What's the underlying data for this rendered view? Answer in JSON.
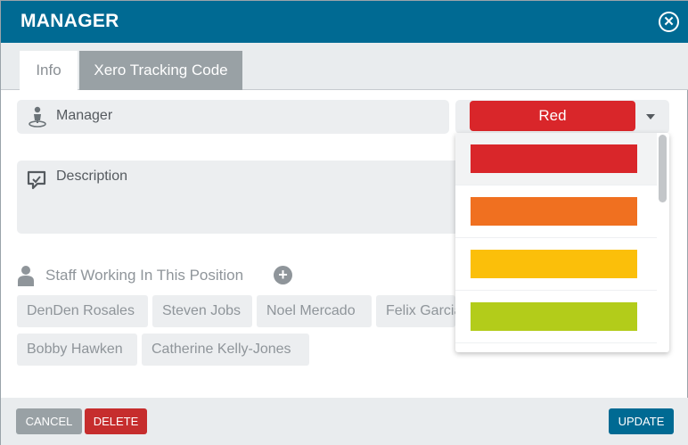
{
  "dialog": {
    "title": "MANAGER",
    "close_icon": "close-circle-icon"
  },
  "tabs": [
    {
      "label": "Info",
      "active": true
    },
    {
      "label": "Xero Tracking Code",
      "active": false
    }
  ],
  "form": {
    "name_label": "Manager",
    "name_icon": "person-pin-icon",
    "description_label": "Description",
    "description_icon": "comment-icon"
  },
  "staff": {
    "title": "Staff Working In This Position",
    "icon": "user-icon",
    "add_icon": "plus-circle-icon",
    "members": [
      "DenDen Rosales",
      "Steven Jobs",
      "Noel Mercado",
      "Felix Garcia",
      "Bobby Hawken",
      "Catherine Kelly-Jones"
    ]
  },
  "color_select": {
    "selected_label": "Red",
    "selected_color": "#d9262a",
    "dropdown_icon": "caret-down-icon",
    "options": [
      {
        "color": "#d9262a"
      },
      {
        "color": "#f07020"
      },
      {
        "color": "#fbbf0a"
      },
      {
        "color": "#b3cc1a"
      }
    ]
  },
  "footer": {
    "cancel_label": "CANCEL",
    "delete_label": "DELETE",
    "update_label": "UPDATE"
  },
  "colors": {
    "header": "#006a93",
    "tab_inactive": "#99a1a5",
    "delete": "#c62d2d",
    "update": "#006a93"
  }
}
